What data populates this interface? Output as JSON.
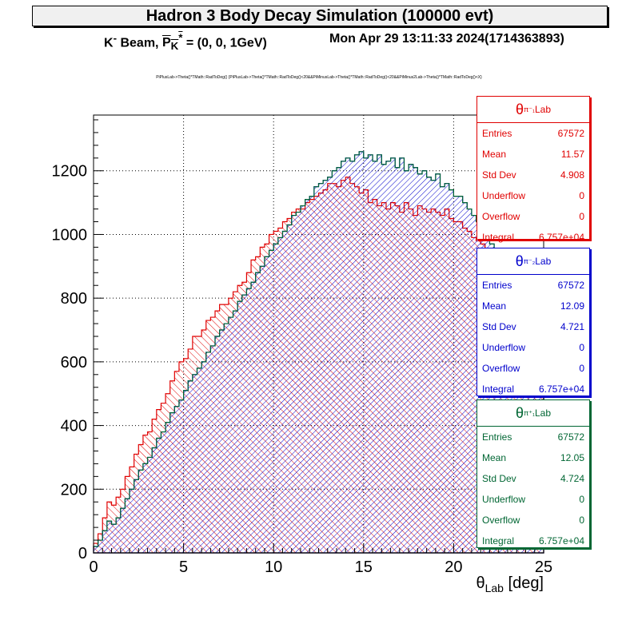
{
  "header": {
    "title": "Hadron 3 Body Decay Simulation (100000 evt)",
    "beam_prefix": "K",
    "beam_sup": "-",
    "beam_mid": " Beam, ",
    "p_sym": "P",
    "p_sub": "K",
    "p_sup": "*",
    "beam_value": " = (0, 0, 1GeV)",
    "date": "Mon Apr 29 13:11:33 2024(1714363893)",
    "draw_command": "PiPlusLab->Theta()*TMath::RadToDeg() {PiPlusLab->Theta()*TMath::RadToDeg()<20&&PiMinusLab->Theta()*TMath::RadToDeg()<20&&PiMinus2Lab->Theta()*TMath::RadToDeg()<X}"
  },
  "stat_boxes": [
    {
      "sym": "θ",
      "sub": "Lab",
      "sup": "π⁻₁",
      "color": "#e00000",
      "rows": [
        [
          "Entries",
          "67572"
        ],
        [
          "Mean",
          "11.57"
        ],
        [
          "Std Dev",
          "4.908"
        ],
        [
          "Underflow",
          "0"
        ],
        [
          "Overflow",
          "0"
        ],
        [
          "Integral",
          "6.757e+04"
        ]
      ]
    },
    {
      "sym": "θ",
      "sub": "Lab",
      "sup": "π⁻₂",
      "color": "#0000cc",
      "rows": [
        [
          "Entries",
          "67572"
        ],
        [
          "Mean",
          "12.09"
        ],
        [
          "Std Dev",
          "4.721"
        ],
        [
          "Underflow",
          "0"
        ],
        [
          "Overflow",
          "0"
        ],
        [
          "Integral",
          "6.757e+04"
        ]
      ]
    },
    {
      "sym": "θ",
      "sub": "Lab",
      "sup": "π⁺₁",
      "color": "#006633",
      "rows": [
        [
          "Entries",
          "67572"
        ],
        [
          "Mean",
          "12.05"
        ],
        [
          "Std Dev",
          "4.724"
        ],
        [
          "Underflow",
          "0"
        ],
        [
          "Overflow",
          "0"
        ],
        [
          "Integral",
          "6.757e+04"
        ]
      ]
    }
  ],
  "chart_data": {
    "type": "bar",
    "xlabel_sym": "θ",
    "xlabel_sub": "Lab",
    "xlabel_unit": " [deg]",
    "xlim": [
      0,
      25
    ],
    "ylim": [
      0,
      1375
    ],
    "xticks": [
      "0",
      "5",
      "10",
      "15",
      "20",
      "25"
    ],
    "yticks": [
      "0",
      "200",
      "400",
      "600",
      "800",
      "1000",
      "1200"
    ],
    "grid": true,
    "bin_width": 0.25,
    "series": [
      {
        "color": "#e00000",
        "fill": "diag-red",
        "values": [
          30,
          60,
          110,
          160,
          150,
          175,
          200,
          240,
          270,
          310,
          340,
          370,
          380,
          420,
          450,
          470,
          500,
          540,
          570,
          600,
          610,
          640,
          680,
          680,
          700,
          730,
          740,
          760,
          780,
          780,
          800,
          820,
          840,
          850,
          880,
          920,
          930,
          960,
          970,
          1000,
          1010,
          1020,
          1040,
          1050,
          1070,
          1080,
          1080,
          1100,
          1110,
          1120,
          1130,
          1140,
          1160,
          1160,
          1150,
          1170,
          1180,
          1160,
          1150,
          1130,
          1140,
          1100,
          1110,
          1090,
          1100,
          1080,
          1100,
          1090,
          1070,
          1100,
          1080,
          1060,
          1090,
          1080,
          1070,
          1080,
          1070,
          1060,
          1080,
          1050,
          1040,
          1040,
          1020,
          1010,
          990,
          980,
          970,
          950,
          940,
          920,
          920,
          900,
          880,
          870,
          860,
          840,
          830,
          810,
          800,
          790
        ]
      },
      {
        "color": "#0000cc",
        "fill": "diag-blue",
        "values": [
          20,
          40,
          70,
          100,
          90,
          110,
          140,
          170,
          200,
          230,
          260,
          280,
          300,
          330,
          360,
          380,
          410,
          440,
          460,
          480,
          510,
          540,
          560,
          580,
          600,
          630,
          650,
          680,
          700,
          720,
          740,
          760,
          790,
          810,
          830,
          850,
          880,
          900,
          930,
          950,
          970,
          990,
          1010,
          1030,
          1060,
          1070,
          1090,
          1110,
          1120,
          1150,
          1160,
          1170,
          1180,
          1200,
          1210,
          1230,
          1240,
          1230,
          1250,
          1260,
          1240,
          1250,
          1230,
          1250,
          1220,
          1230,
          1240,
          1210,
          1240,
          1200,
          1220,
          1210,
          1190,
          1200,
          1180,
          1170,
          1190,
          1150,
          1160,
          1140,
          1120,
          1120,
          1100,
          1080,
          1060,
          1040,
          1010,
          990,
          970,
          950,
          920,
          900,
          880,
          870,
          850,
          830,
          810,
          800,
          790,
          780
        ]
      },
      {
        "color": "#006633",
        "fill": "none",
        "values": [
          20,
          40,
          70,
          100,
          90,
          110,
          140,
          170,
          200,
          230,
          260,
          280,
          300,
          330,
          360,
          380,
          410,
          440,
          460,
          480,
          510,
          540,
          560,
          580,
          600,
          630,
          650,
          680,
          700,
          720,
          740,
          760,
          790,
          810,
          830,
          850,
          880,
          900,
          930,
          950,
          970,
          990,
          1010,
          1030,
          1060,
          1070,
          1090,
          1110,
          1120,
          1150,
          1160,
          1170,
          1180,
          1200,
          1210,
          1230,
          1240,
          1230,
          1250,
          1260,
          1240,
          1250,
          1230,
          1250,
          1220,
          1230,
          1240,
          1210,
          1240,
          1200,
          1220,
          1210,
          1190,
          1200,
          1180,
          1170,
          1190,
          1150,
          1160,
          1140,
          1120,
          1120,
          1100,
          1080,
          1060,
          1040,
          1010,
          990,
          970,
          950,
          920,
          900,
          880,
          870,
          850,
          830,
          810,
          800,
          790,
          780
        ]
      }
    ]
  }
}
